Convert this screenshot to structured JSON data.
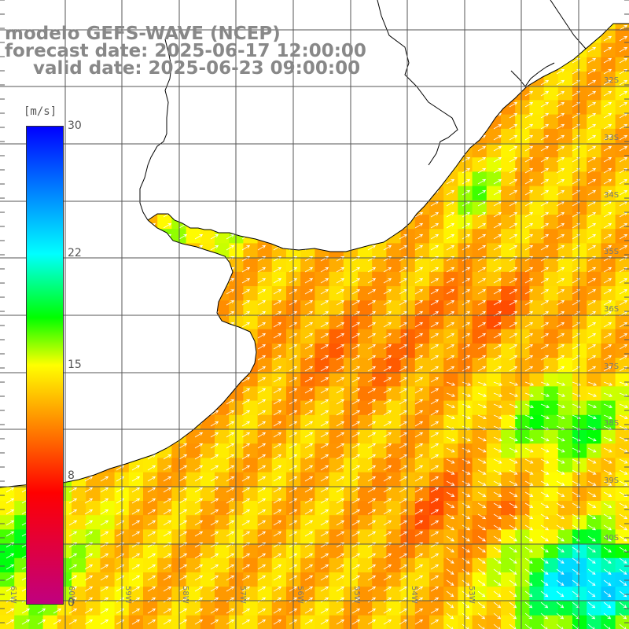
{
  "title": {
    "model": "modelo GEFS-WAVE (NCEP)",
    "forecast": "forecast date: 2025-06-17 12:00:00",
    "valid": "valid date: 2025-06-23 09:00:00"
  },
  "colorbar": {
    "unit": "[m/s]",
    "min": 0,
    "max": 30,
    "ticks": [
      "30",
      "22",
      "15",
      "8",
      "0"
    ],
    "tick_values": [
      30,
      22,
      15,
      8,
      0
    ],
    "colors": [
      "#0000ff",
      "#00ffff",
      "#00ff00",
      "#ffff00",
      "#ff8000",
      "#ff0000",
      "#c00080"
    ]
  },
  "map": {
    "variable": "wind speed and direction",
    "land_color": "#ffffff",
    "grid_color": "#555555",
    "arrow_color": "#ffffff",
    "coast_color": "#000000",
    "lat_labels": [
      "32S",
      "33S",
      "34S",
      "35S",
      "36S",
      "37S",
      "38S",
      "39S",
      "40S"
    ],
    "lon_labels": [
      "61W",
      "60W",
      "59W",
      "58W",
      "57W",
      "56W",
      "55W",
      "54W",
      "53W"
    ]
  }
}
